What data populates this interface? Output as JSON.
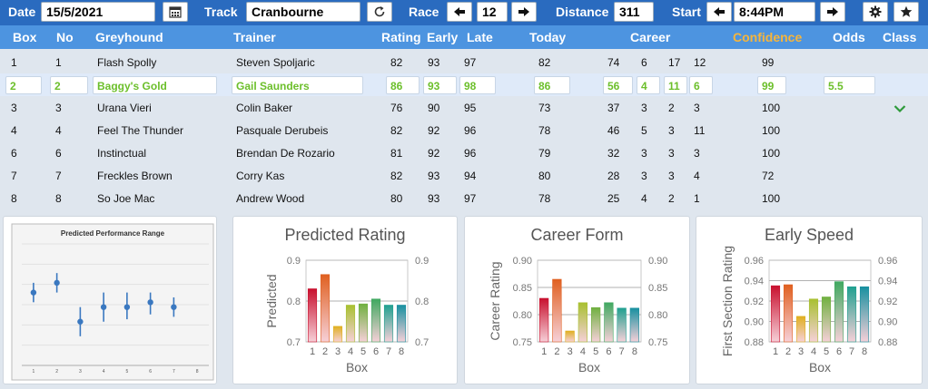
{
  "toolbar": {
    "date_label": "Date",
    "date_value": "15/5/2021",
    "track_label": "Track",
    "track_value": "Cranbourne",
    "race_label": "Race",
    "race_value": "12",
    "distance_label": "Distance",
    "distance_value": "311",
    "start_label": "Start",
    "start_value": "8:44PM"
  },
  "columns": {
    "box": "Box",
    "no": "No",
    "greyhound": "Greyhound",
    "trainer": "Trainer",
    "rating": "Rating",
    "early": "Early",
    "late": "Late",
    "today": "Today",
    "career": "Career",
    "confidence": "Confidence",
    "odds": "Odds",
    "class": "Class"
  },
  "rows": [
    {
      "box": "1",
      "no": "1",
      "greyhound": "Flash Spolly",
      "trainer": "Steven Spoljaric",
      "rating": "82",
      "early": "93",
      "late": "97",
      "today": "82",
      "c1": "74",
      "c2": "6",
      "c3": "17",
      "c4": "12",
      "confidence": "99",
      "odds": ""
    },
    {
      "box": "2",
      "no": "2",
      "greyhound": "Baggy's Gold",
      "trainer": "Gail Saunders",
      "rating": "86",
      "early": "93",
      "late": "98",
      "today": "86",
      "c1": "56",
      "c2": "4",
      "c3": "11",
      "c4": "6",
      "confidence": "99",
      "odds": "5.5"
    },
    {
      "box": "3",
      "no": "3",
      "greyhound": "Urana Vieri",
      "trainer": "Colin Baker",
      "rating": "76",
      "early": "90",
      "late": "95",
      "today": "73",
      "c1": "37",
      "c2": "3",
      "c3": "2",
      "c4": "3",
      "confidence": "100",
      "odds": ""
    },
    {
      "box": "4",
      "no": "4",
      "greyhound": "Feel The Thunder",
      "trainer": "Pasquale Derubeis",
      "rating": "82",
      "early": "92",
      "late": "96",
      "today": "78",
      "c1": "46",
      "c2": "5",
      "c3": "3",
      "c4": "11",
      "confidence": "100",
      "odds": ""
    },
    {
      "box": "6",
      "no": "6",
      "greyhound": "Instinctual",
      "trainer": "Brendan De Rozario",
      "rating": "81",
      "early": "92",
      "late": "96",
      "today": "79",
      "c1": "32",
      "c2": "3",
      "c3": "3",
      "c4": "3",
      "confidence": "100",
      "odds": ""
    },
    {
      "box": "7",
      "no": "7",
      "greyhound": "Freckles Brown",
      "trainer": "Corry Kas",
      "rating": "82",
      "early": "93",
      "late": "94",
      "today": "80",
      "c1": "28",
      "c2": "3",
      "c3": "3",
      "c4": "4",
      "confidence": "72",
      "odds": ""
    },
    {
      "box": "8",
      "no": "8",
      "greyhound": "So Joe Mac",
      "trainer": "Andrew Wood",
      "rating": "80",
      "early": "93",
      "late": "97",
      "today": "78",
      "c1": "25",
      "c2": "4",
      "c3": "2",
      "c4": "1",
      "confidence": "100",
      "odds": ""
    }
  ],
  "chart_data": [
    {
      "type": "scatter",
      "title": "Predicted Performance Range",
      "x": [
        1,
        2,
        3,
        4,
        5,
        6,
        7
      ],
      "y": [
        0.8,
        0.82,
        0.74,
        0.77,
        0.77,
        0.78,
        0.77
      ],
      "y_low": [
        0.78,
        0.8,
        0.71,
        0.74,
        0.745,
        0.755,
        0.75
      ],
      "y_high": [
        0.82,
        0.84,
        0.77,
        0.8,
        0.8,
        0.8,
        0.79
      ],
      "xticks": [
        "1",
        "2",
        "3",
        "4",
        "5",
        "6",
        "7",
        "8"
      ],
      "xlim": [
        0.5,
        8.5
      ],
      "ylim": [
        0.65,
        0.9
      ]
    },
    {
      "type": "bar",
      "title": "Predicted Rating",
      "categories": [
        "1",
        "2",
        "3",
        "4",
        "5",
        "6",
        "7",
        "8"
      ],
      "values": [
        0.83,
        0.865,
        0.738,
        0.79,
        0.793,
        0.805,
        0.79,
        0.79
      ],
      "xlabel": "Box",
      "ylabel": "Predicted",
      "ylim": [
        0.7,
        0.9
      ],
      "yticks": [
        "0.7",
        "0.8",
        "0.9"
      ]
    },
    {
      "type": "bar",
      "title": "Career Form",
      "categories": [
        "1",
        "2",
        "3",
        "4",
        "5",
        "6",
        "7",
        "8"
      ],
      "values": [
        0.83,
        0.865,
        0.77,
        0.822,
        0.813,
        0.822,
        0.812,
        0.812
      ],
      "xlabel": "Box",
      "ylabel": "Career Rating",
      "ylim": [
        0.75,
        0.9
      ],
      "yticks": [
        "0.75",
        "0.80",
        "0.85",
        "0.90"
      ]
    },
    {
      "type": "bar",
      "title": "Early Speed",
      "categories": [
        "1",
        "2",
        "3",
        "4",
        "5",
        "6",
        "7",
        "8"
      ],
      "values": [
        0.935,
        0.936,
        0.905,
        0.922,
        0.924,
        0.939,
        0.934,
        0.934
      ],
      "xlabel": "Box",
      "ylabel": "First Section Rating",
      "ylim": [
        0.88,
        0.96
      ],
      "yticks": [
        "0.88",
        "0.90",
        "0.92",
        "0.94",
        "0.96"
      ]
    }
  ],
  "colors": {
    "topbar": "#2a6bbf",
    "header": "#4d94e0",
    "confidence": "#f7b53b",
    "selected_text": "#6cbf2b",
    "bar_gradient": [
      "#c8102e",
      "#e06020",
      "#e0b020",
      "#a8c030",
      "#70b040",
      "#40a860",
      "#20a090",
      "#1890a0"
    ]
  },
  "icons": {
    "calendar": "calendar-icon",
    "refresh": "refresh-icon",
    "prev": "arrow-left-icon",
    "next": "arrow-right-icon",
    "settings": "gear-icon",
    "favorite": "star-icon",
    "class": "chevron-down-icon"
  }
}
